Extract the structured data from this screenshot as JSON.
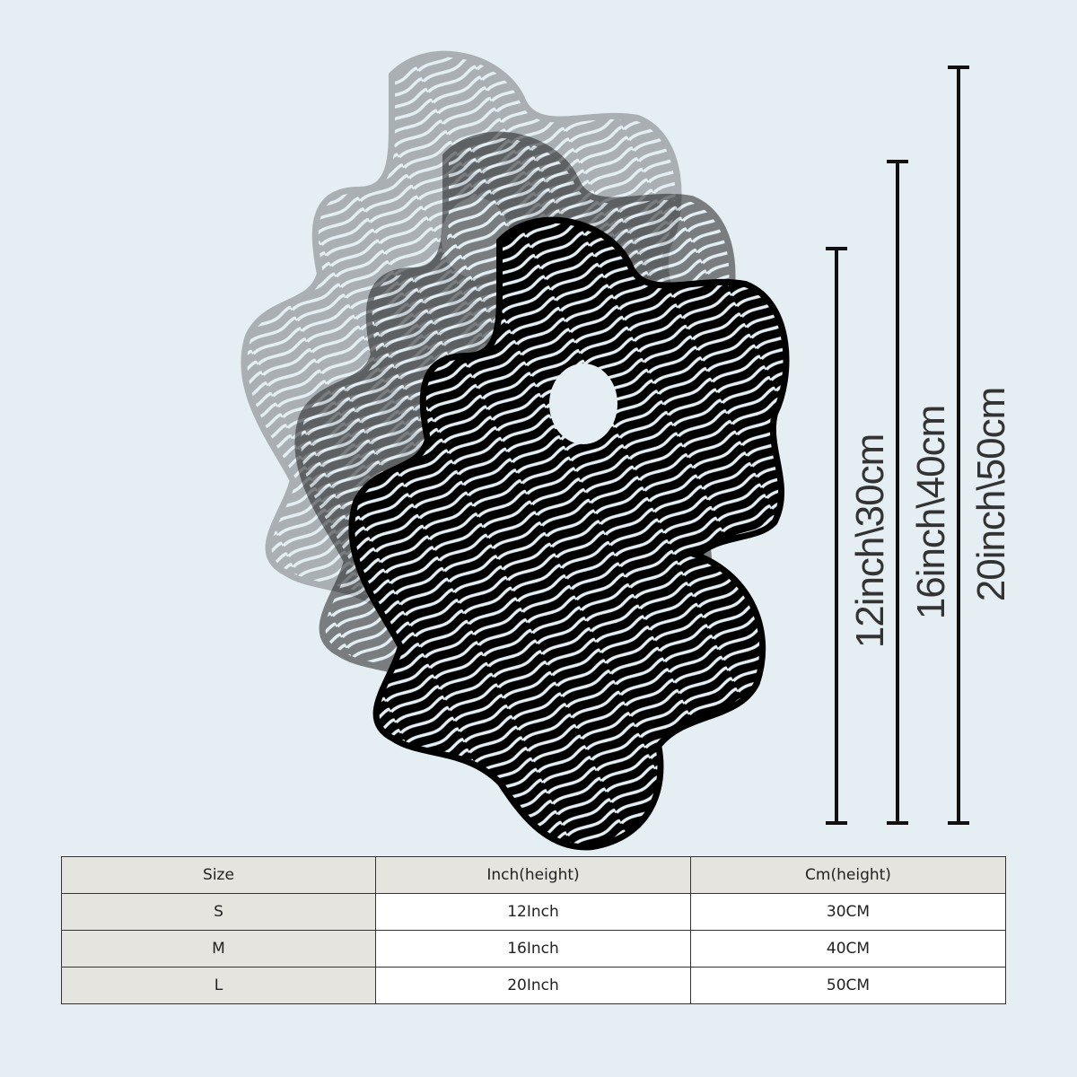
{
  "illustration": {
    "subject": "abstract wavy line wall art, three sizes overlaid",
    "colors": {
      "small": "#000000",
      "medium": "#7c7f82",
      "large": "#b7bbbe"
    }
  },
  "dimension_labels": [
    {
      "label": "12inch\\30cm"
    },
    {
      "label": "16inch\\40cm"
    },
    {
      "label": "20inch\\50cm"
    }
  ],
  "size_table": {
    "headers": [
      "Size",
      "Inch(height)",
      "Cm(height)"
    ],
    "rows": [
      [
        "S",
        "12Inch",
        "30CM"
      ],
      [
        "M",
        "16Inch",
        "40CM"
      ],
      [
        "L",
        "20Inch",
        "50CM"
      ]
    ]
  }
}
